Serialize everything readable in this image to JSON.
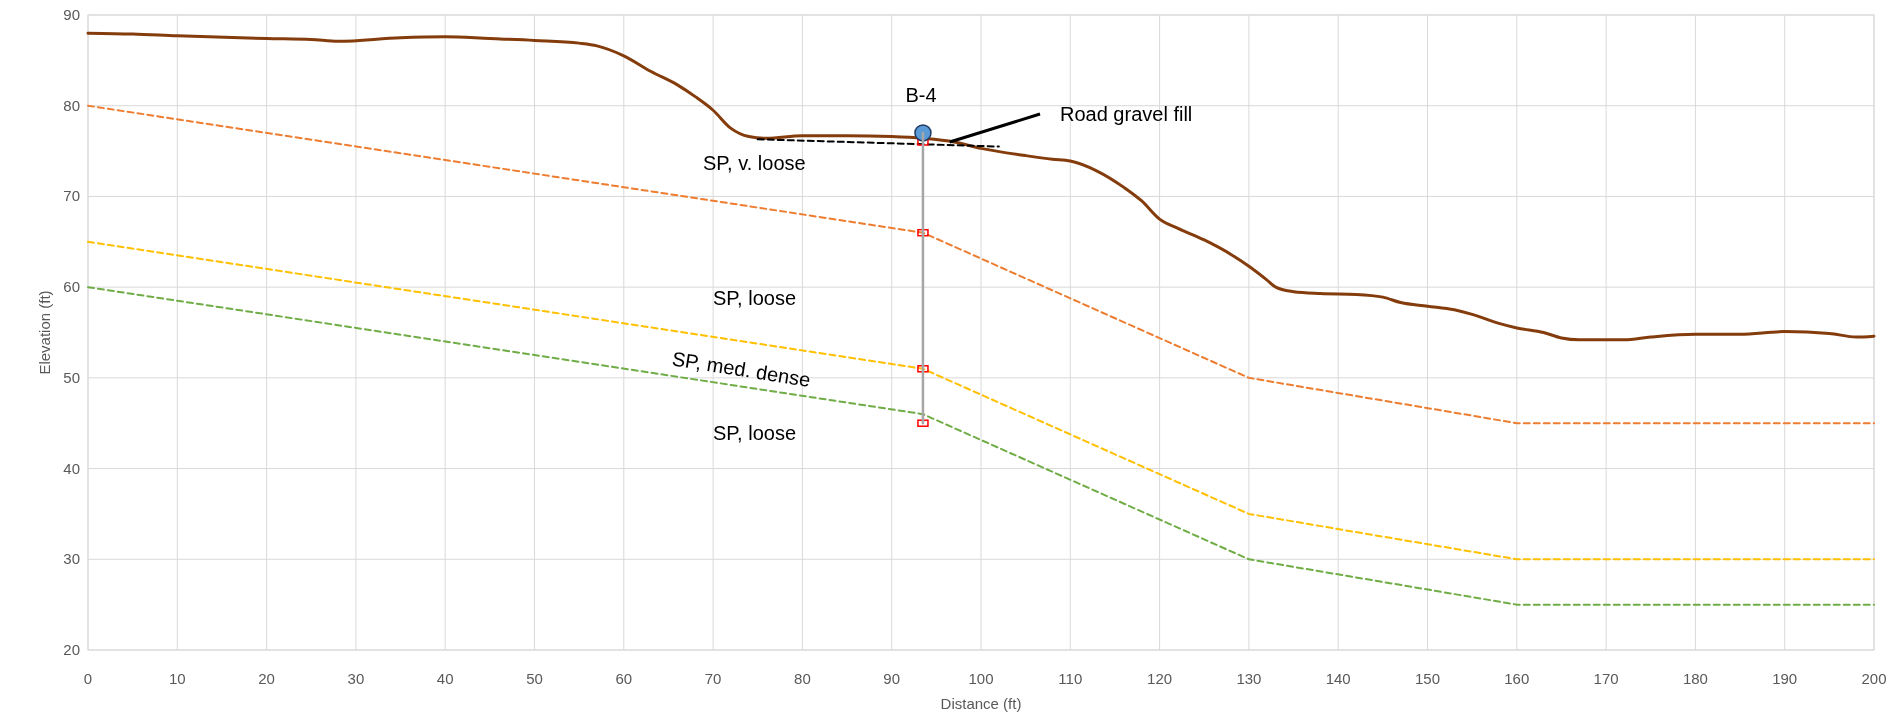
{
  "chart_data": {
    "type": "line",
    "xlabel": "Distance (ft)",
    "ylabel": "Elevation (ft)",
    "xlim": [
      0,
      200
    ],
    "xticks": [
      0,
      10,
      20,
      30,
      40,
      50,
      60,
      70,
      80,
      90,
      100,
      110,
      120,
      130,
      140,
      150,
      160,
      170,
      180,
      190,
      200
    ],
    "ylim": [
      20,
      90
    ],
    "yticks": [
      20,
      30,
      40,
      50,
      60,
      70,
      80,
      90
    ],
    "grid": true,
    "series": [
      {
        "color": "#843c0c",
        "line_style": "solid",
        "marker": "none",
        "x": [
          0,
          5,
          10,
          20,
          25,
          28,
          35,
          40,
          45,
          50,
          55,
          57,
          60,
          63,
          66,
          68,
          70,
          72,
          74,
          76,
          80,
          85,
          90,
          93.5,
          97,
          100,
          105,
          108,
          110,
          113,
          116,
          118,
          120,
          122,
          125,
          128,
          130,
          132,
          133,
          135,
          138,
          142,
          145,
          147,
          150,
          153,
          155,
          158,
          160,
          163,
          165,
          167,
          172,
          175,
          180,
          185,
          190,
          195,
          198,
          200
        ],
        "values": [
          88,
          87.9,
          87.7,
          87.4,
          87.3,
          87.1,
          87.5,
          87.6,
          87.4,
          87.2,
          86.9,
          86.6,
          85.5,
          83.8,
          82.3,
          81,
          79.5,
          77.5,
          76.6,
          76.4,
          76.7,
          76.7,
          76.6,
          76.4,
          76,
          75.3,
          74.5,
          74.1,
          73.9,
          72.8,
          71,
          69.5,
          67.5,
          66.5,
          65.2,
          63.6,
          62.3,
          60.8,
          60,
          59.5,
          59.3,
          59.2,
          58.9,
          58.3,
          57.9,
          57.5,
          57,
          56,
          55.5,
          55,
          54.4,
          54.2,
          54.2,
          54.5,
          54.8,
          54.8,
          55.1,
          54.9,
          54.5,
          54.6
        ]
      },
      {
        "color": "#ed7d31",
        "line_style": "dashed",
        "marker": "none",
        "x": [
          0,
          93.5,
          130,
          160,
          200
        ],
        "values": [
          80,
          66,
          50,
          45,
          45
        ]
      },
      {
        "color": "#ffc000",
        "line_style": "dashed",
        "marker": "none",
        "x": [
          0,
          93.5,
          130,
          160,
          200
        ],
        "values": [
          65,
          51,
          35,
          30,
          30
        ]
      },
      {
        "color": "#70ad47",
        "line_style": "dashed",
        "marker": "none",
        "x": [
          0,
          93.5,
          130,
          160,
          200
        ],
        "values": [
          60,
          46,
          30,
          25,
          25
        ]
      },
      {
        "color": "#000000",
        "line_style": "dashed",
        "marker": "none",
        "x": [
          75,
          102
        ],
        "values": [
          76.3,
          75.5
        ]
      },
      {
        "type": "scatter",
        "color": "#ff0000",
        "marker": "square",
        "x": [
          93.5,
          93.5,
          93.5,
          93.5
        ],
        "values": [
          76,
          66,
          51,
          45
        ]
      },
      {
        "type": "scatter",
        "color": "#5b9bd5",
        "marker": "circle",
        "x": [
          93.5
        ],
        "values": [
          77
        ]
      },
      {
        "color": "#a6a6a6",
        "line_style": "solid",
        "marker": "none",
        "x": [
          93.5,
          93.5
        ],
        "values": [
          77,
          45
        ]
      }
    ],
    "annotations": [
      "B-4",
      {
        "text": "Road gravel fill",
        "x": 96.5,
        "y": 76
      },
      "SP, v. loose",
      "SP, loose",
      "SP, med. dense",
      "SP, loose"
    ]
  }
}
